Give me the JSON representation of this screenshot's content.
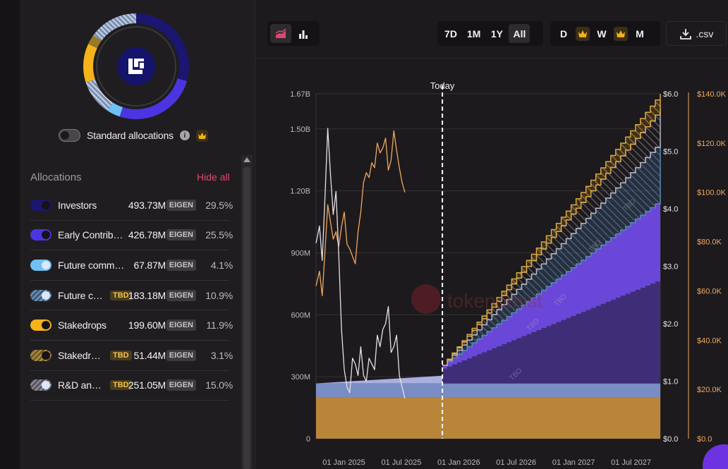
{
  "left_panel": {
    "toggle_label": "Standard allocations",
    "allocations_title": "Allocations",
    "hide_all": "Hide all",
    "items": [
      {
        "name": "Investors",
        "amount": "493.73M",
        "token": "EIGEN",
        "pct": "29.5%",
        "tbd": "",
        "color": "#1b1670",
        "style": "solid"
      },
      {
        "name": "Early Contrib…",
        "amount": "426.78M",
        "token": "EIGEN",
        "pct": "25.5%",
        "tbd": "",
        "color": "#4a35e0",
        "style": "solid"
      },
      {
        "name": "Future comm…",
        "amount": "67.87M",
        "token": "EIGEN",
        "pct": "4.1%",
        "tbd": "",
        "color": "#6fc0f5",
        "style": "solid"
      },
      {
        "name": "Future c…",
        "amount": "183.18M",
        "token": "EIGEN",
        "pct": "10.9%",
        "tbd": "TBD",
        "color": "#3a5e84",
        "style": "hatch-light"
      },
      {
        "name": "Stakedrops",
        "amount": "199.60M",
        "token": "EIGEN",
        "pct": "11.9%",
        "tbd": "",
        "color": "#f5b21a",
        "style": "solid"
      },
      {
        "name": "Stakedr…",
        "amount": "51.44M",
        "token": "EIGEN",
        "pct": "3.1%",
        "tbd": "TBD",
        "color": "#7a5a14",
        "style": "hatch-gold"
      },
      {
        "name": "R&D an…",
        "amount": "251.05M",
        "token": "EIGEN",
        "pct": "15.0%",
        "tbd": "TBD",
        "color": "#5a5660",
        "style": "hatch-light"
      }
    ]
  },
  "toolbar": {
    "chart_modes": [
      "area-chart-icon",
      "bar-chart-icon"
    ],
    "ranges": [
      "7D",
      "1M",
      "1Y",
      "All"
    ],
    "active_range": "All",
    "granularity": [
      "D",
      "W",
      "M"
    ],
    "csv_label": ".csv"
  },
  "chart_data": {
    "type": "area",
    "today_label": "Today",
    "watermark": "tokenomist",
    "x_ticks": [
      "01 Jan 2025",
      "01 Jul 2025",
      "01 Jan 2026",
      "01 Jul 2026",
      "01 Jan 2027",
      "01 Jul 2027"
    ],
    "y_left_ticks": [
      "0",
      "300M",
      "600M",
      "900M",
      "1.20B",
      "1.50B",
      "1.67B"
    ],
    "y_left_range": [
      0,
      1670000000
    ],
    "y_price_ticks": [
      "$0.0",
      "$1.0",
      "$2.0",
      "$3.0",
      "$4.0",
      "$5.0",
      "$6.0"
    ],
    "y_price_range": [
      0,
      6
    ],
    "y_mcap_ticks": [
      "$0.0",
      "$20.0K",
      "$40.0K",
      "$60.0K",
      "$80.0K",
      "$100.0K",
      "$120.0K",
      "$140.0K"
    ],
    "y_mcap_range": [
      0,
      140000
    ],
    "tbd_label": "TBD",
    "x_start": "2024-10-01",
    "x_end": "2027-10-01",
    "today": "2025-11-25",
    "stacked_series": [
      {
        "name": "Stakedrops",
        "color": "#b8853a",
        "points": [
          [
            0,
            200
          ],
          [
            1,
            200
          ]
        ]
      },
      {
        "name": "Future comm…",
        "color": "#7a8cc4",
        "points": [
          [
            0,
            268
          ],
          [
            1,
            268
          ]
        ]
      },
      {
        "name": "Investors",
        "color": "#3e2e78",
        "points": [
          [
            0,
            268
          ],
          [
            0.26,
            268
          ],
          [
            1,
            770
          ]
        ]
      },
      {
        "name": "Early Contrib…",
        "color": "#6a47d8",
        "points": [
          [
            0,
            268
          ],
          [
            0.26,
            268
          ],
          [
            1,
            1150
          ]
        ]
      },
      {
        "name": "Future c…",
        "color": "#4a7fb0",
        "points": [
          [
            0.26,
            280
          ],
          [
            1,
            1430
          ]
        ]
      },
      {
        "name": "R&D an…",
        "color": "#a8a4b0",
        "points": [
          [
            0.26,
            320
          ],
          [
            1,
            1590
          ]
        ]
      },
      {
        "name": "Stakedr…",
        "color": "#c89a3a",
        "points": [
          [
            0.26,
            340
          ],
          [
            1,
            1670
          ]
        ]
      }
    ],
    "price_series": {
      "color": "#e5e2e6",
      "x": [
        0.0,
        0.01,
        0.018,
        0.026,
        0.034,
        0.042,
        0.05,
        0.058,
        0.066,
        0.074,
        0.082,
        0.09,
        0.098,
        0.106,
        0.114,
        0.122,
        0.13,
        0.138,
        0.146,
        0.154,
        0.162,
        0.17,
        0.178,
        0.186,
        0.194,
        0.202,
        0.21,
        0.218,
        0.226,
        0.234,
        0.242,
        0.25,
        0.258
      ],
      "y": [
        3.4,
        3.7,
        3.1,
        4.2,
        5.4,
        4.6,
        3.9,
        4.3,
        3.2,
        1.9,
        1.2,
        0.9,
        0.8,
        1.4,
        1.3,
        1.1,
        1.6,
        1.1,
        1.0,
        1.4,
        1.3,
        1.2,
        1.8,
        1.6,
        1.9,
        2.0,
        2.3,
        1.5,
        1.6,
        1.8,
        1.1,
        0.9,
        0.7
      ]
    },
    "mcap_series": {
      "color": "#f0a860",
      "x": [
        0.0,
        0.01,
        0.018,
        0.026,
        0.034,
        0.042,
        0.05,
        0.058,
        0.066,
        0.074,
        0.082,
        0.09,
        0.098,
        0.106,
        0.114,
        0.122,
        0.13,
        0.138,
        0.146,
        0.154,
        0.162,
        0.17,
        0.178,
        0.186,
        0.194,
        0.202,
        0.21,
        0.218,
        0.226,
        0.234,
        0.242,
        0.25,
        0.258
      ],
      "y": [
        62,
        68,
        58,
        76,
        95,
        88,
        81,
        84,
        78,
        86,
        92,
        79,
        77,
        74,
        71,
        84,
        92,
        104,
        108,
        106,
        112,
        110,
        120,
        116,
        118,
        122,
        109,
        113,
        125,
        117,
        110,
        104,
        100
      ]
    }
  }
}
